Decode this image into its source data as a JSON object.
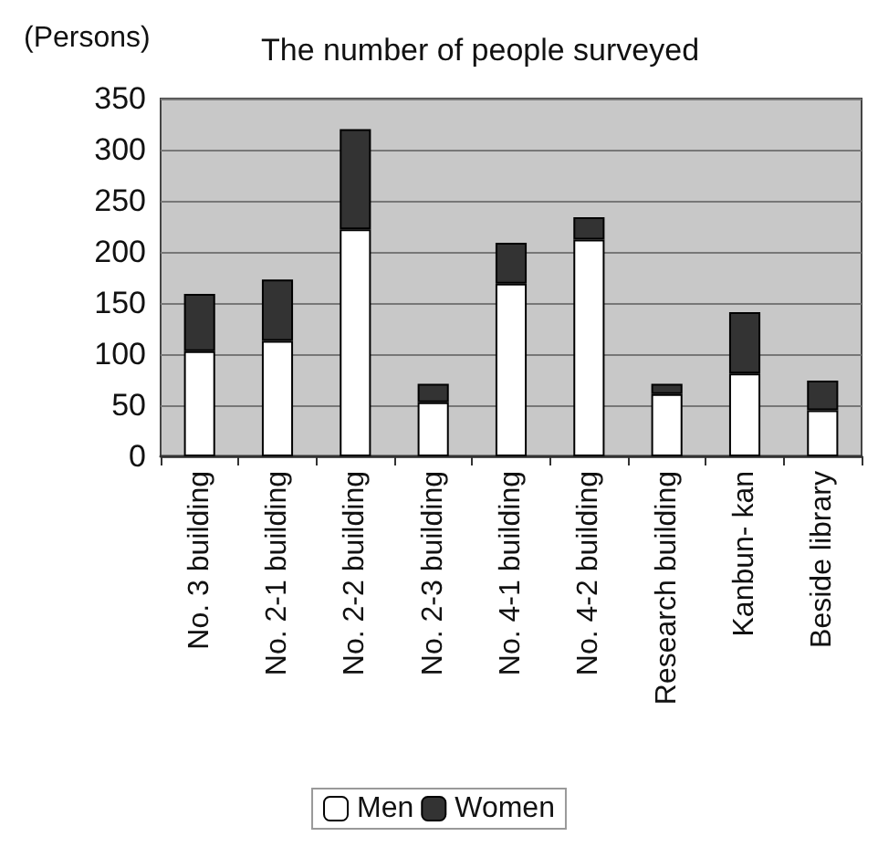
{
  "chart_data": {
    "type": "bar",
    "title": "The number of people surveyed",
    "ylabel": "(Persons)",
    "categories": [
      "No. 3 building",
      "No. 2-1 building",
      "No. 2-2 building",
      "No. 2-3 building",
      "No. 4-1 building",
      "No. 4-2 building",
      "Research building",
      "Kanbun- kan",
      "Beside library"
    ],
    "series": [
      {
        "name": "Men",
        "color": "#ffffff",
        "values": [
          103,
          113,
          222,
          53,
          169,
          212,
          61,
          81,
          45
        ]
      },
      {
        "name": "Women",
        "color": "#333333",
        "values": [
          56,
          60,
          98,
          18,
          40,
          22,
          10,
          60,
          29
        ]
      }
    ],
    "stacked": true,
    "ylim": [
      0,
      350
    ],
    "yticks": [
      0,
      50,
      100,
      150,
      200,
      250,
      300,
      350
    ],
    "grid": "y",
    "legend": "bottom"
  }
}
